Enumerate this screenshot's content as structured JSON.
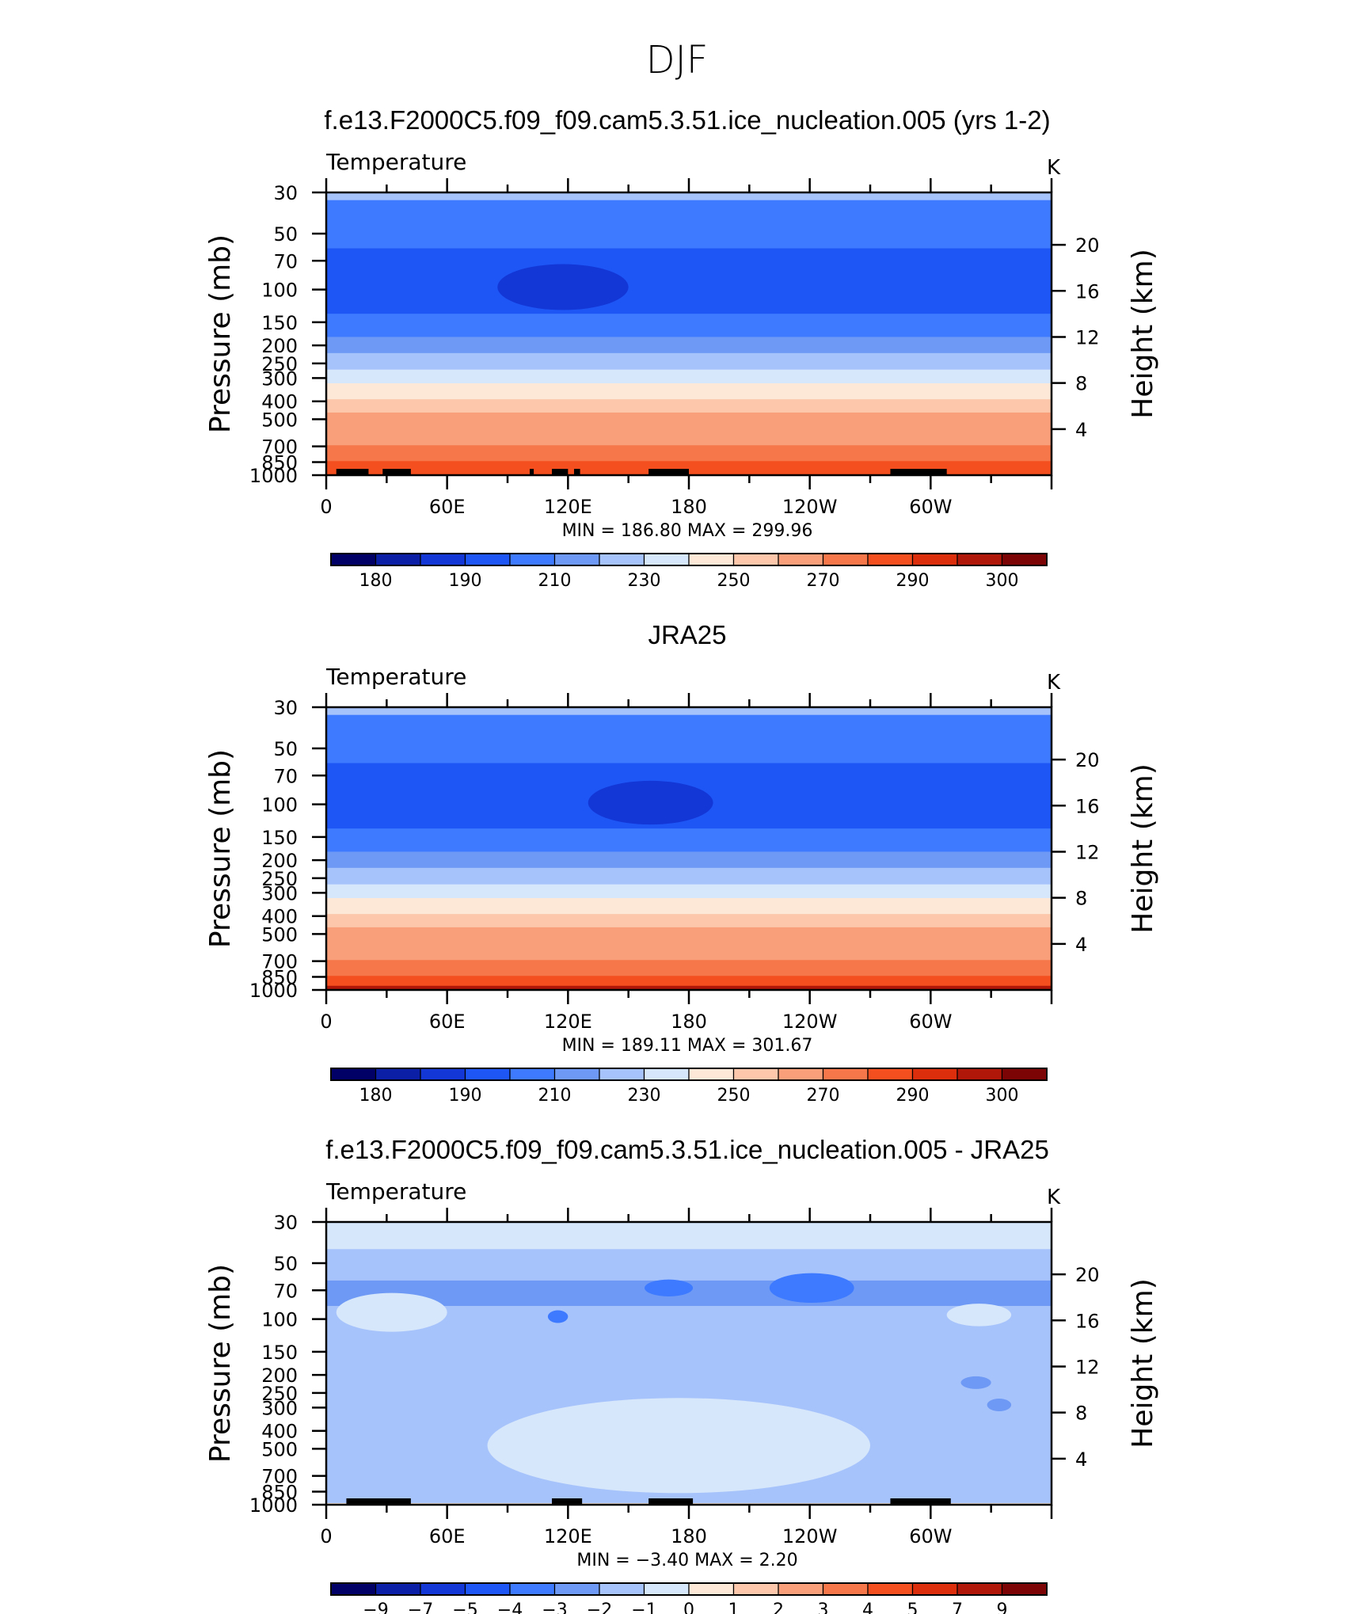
{
  "page_title": "DJF",
  "panels": [
    {
      "title": "f.e13.F2000C5.f09_f09.cam5.3.51.ice_nucleation.005 (yrs 1-2)",
      "left_label": "Temperature",
      "units": "K",
      "min_max": "MIN  =  186.80   MAX  =  299.96"
    },
    {
      "title": "JRA25",
      "left_label": "Temperature",
      "units": "K",
      "min_max": "MIN  =  189.11   MAX  =  301.67"
    },
    {
      "title": "f.e13.F2000C5.f09_f09.cam5.3.51.ice_nucleation.005 - JRA25",
      "left_label": "Temperature",
      "units": "K",
      "min_max": "MIN  =   −3.40   MAX  =     2.20"
    }
  ],
  "chart_data": [
    {
      "type": "heatmap",
      "title": "f.e13.F2000C5.f09_f09.cam5.3.51.ice_nucleation.005 (yrs 1-2)",
      "variable": "Temperature",
      "units": "K",
      "ylabel": "Pressure (mb)",
      "ylabel_right": "Height (km)",
      "x_ticks": [
        "0",
        "60E",
        "120E",
        "180",
        "120W",
        "60W"
      ],
      "y_ticks": [
        "30",
        "50",
        "70",
        "100",
        "150",
        "200",
        "250",
        "300",
        "400",
        "500",
        "700",
        "850",
        "1000"
      ],
      "y_ticks_right": [
        "20",
        "16",
        "12",
        "8",
        "4"
      ],
      "ylim": [
        1000,
        30
      ],
      "y_scale": "log",
      "min": 186.8,
      "max": 299.96,
      "colorbar_labels": [
        "180",
        "190",
        "210",
        "230",
        "250",
        "270",
        "290",
        "300"
      ],
      "layers": [
        {
          "top": 30,
          "bottom": 33,
          "value": 220
        },
        {
          "top": 33,
          "bottom": 60,
          "value": 207
        },
        {
          "top": 60,
          "bottom": 135,
          "value": 197
        },
        {
          "top": 135,
          "bottom": 180,
          "value": 207
        },
        {
          "top": 180,
          "bottom": 220,
          "value": 215
        },
        {
          "top": 220,
          "bottom": 270,
          "value": 225
        },
        {
          "top": 270,
          "bottom": 320,
          "value": 235
        },
        {
          "top": 320,
          "bottom": 390,
          "value": 245
        },
        {
          "top": 390,
          "bottom": 460,
          "value": 252
        },
        {
          "top": 460,
          "bottom": 560,
          "value": 260
        },
        {
          "top": 560,
          "bottom": 690,
          "value": 268
        },
        {
          "top": 690,
          "bottom": 840,
          "value": 277
        },
        {
          "top": 840,
          "bottom": 1000,
          "value": 285
        }
      ],
      "features": [
        {
          "lon0": 85,
          "lon1": 150,
          "p": 97,
          "value": 187
        }
      ],
      "land": [
        {
          "lon0": 5,
          "lon1": 21
        },
        {
          "lon0": 28,
          "lon1": 42
        },
        {
          "lon0": 101,
          "lon1": 103
        },
        {
          "lon0": 112,
          "lon1": 120
        },
        {
          "lon0": 123,
          "lon1": 126
        },
        {
          "lon0": 160,
          "lon1": 180
        },
        {
          "lon0": 280,
          "lon1": 308
        }
      ]
    },
    {
      "type": "heatmap",
      "title": "JRA25",
      "variable": "Temperature",
      "units": "K",
      "ylabel": "Pressure (mb)",
      "ylabel_right": "Height (km)",
      "x_ticks": [
        "0",
        "60E",
        "120E",
        "180",
        "120W",
        "60W"
      ],
      "y_ticks": [
        "30",
        "50",
        "70",
        "100",
        "150",
        "200",
        "250",
        "300",
        "400",
        "500",
        "700",
        "850",
        "1000"
      ],
      "y_ticks_right": [
        "20",
        "16",
        "12",
        "8",
        "4"
      ],
      "ylim": [
        1000,
        30
      ],
      "y_scale": "log",
      "min": 189.11,
      "max": 301.67,
      "colorbar_labels": [
        "180",
        "190",
        "210",
        "230",
        "250",
        "270",
        "290",
        "300"
      ],
      "layers": [
        {
          "top": 30,
          "bottom": 33,
          "value": 220
        },
        {
          "top": 33,
          "bottom": 60,
          "value": 207
        },
        {
          "top": 60,
          "bottom": 135,
          "value": 197
        },
        {
          "top": 135,
          "bottom": 180,
          "value": 207
        },
        {
          "top": 180,
          "bottom": 220,
          "value": 215
        },
        {
          "top": 220,
          "bottom": 270,
          "value": 225
        },
        {
          "top": 270,
          "bottom": 320,
          "value": 235
        },
        {
          "top": 320,
          "bottom": 390,
          "value": 245
        },
        {
          "top": 390,
          "bottom": 460,
          "value": 252
        },
        {
          "top": 460,
          "bottom": 560,
          "value": 260
        },
        {
          "top": 560,
          "bottom": 690,
          "value": 268
        },
        {
          "top": 690,
          "bottom": 840,
          "value": 277
        },
        {
          "top": 840,
          "bottom": 950,
          "value": 285
        },
        {
          "top": 950,
          "bottom": 1000,
          "value": 295
        }
      ],
      "features": [
        {
          "lon0": 130,
          "lon1": 192,
          "p": 98,
          "value": 187
        }
      ],
      "land": []
    },
    {
      "type": "heatmap",
      "title": "f.e13.F2000C5.f09_f09.cam5.3.51.ice_nucleation.005 - JRA25",
      "variable": "Temperature",
      "units": "K",
      "ylabel": "Pressure (mb)",
      "ylabel_right": "Height (km)",
      "x_ticks": [
        "0",
        "60E",
        "120E",
        "180",
        "120W",
        "60W"
      ],
      "y_ticks": [
        "30",
        "50",
        "70",
        "100",
        "150",
        "200",
        "250",
        "300",
        "400",
        "500",
        "700",
        "850",
        "1000"
      ],
      "y_ticks_right": [
        "20",
        "16",
        "12",
        "8",
        "4"
      ],
      "ylim": [
        1000,
        30
      ],
      "y_scale": "log",
      "min": -3.4,
      "max": 2.2,
      "colorbar_labels": [
        "−9",
        "−7",
        "−5",
        "−4",
        "−3",
        "−2",
        "−1",
        "0",
        "1",
        "2",
        "3",
        "4",
        "5",
        "7",
        "9"
      ],
      "layers": [
        {
          "top": 30,
          "bottom": 42,
          "value": -0.5
        },
        {
          "top": 42,
          "bottom": 62,
          "value": -1.5
        },
        {
          "top": 62,
          "bottom": 85,
          "value": -2.5
        },
        {
          "top": 85,
          "bottom": 980,
          "value": -1.5
        },
        {
          "top": 980,
          "bottom": 1000,
          "value": 0.5
        }
      ],
      "features": [
        {
          "lon0": 5,
          "lon1": 60,
          "p": 92,
          "value": -0.5
        },
        {
          "lon0": 308,
          "lon1": 340,
          "p": 95,
          "value": -0.5
        },
        {
          "lon0": 80,
          "lon1": 270,
          "p": 480,
          "value": -0.5
        },
        {
          "lon0": 110,
          "lon1": 120,
          "p": 97,
          "value": -3.5
        },
        {
          "lon0": 220,
          "lon1": 262,
          "p": 68,
          "value": -3.5
        },
        {
          "lon0": 158,
          "lon1": 182,
          "p": 68,
          "value": -3.5
        },
        {
          "lon0": 315,
          "lon1": 330,
          "p": 220,
          "value": -2.5
        },
        {
          "lon0": 328,
          "lon1": 340,
          "p": 290,
          "value": -2.5
        }
      ],
      "land": [
        {
          "lon0": 10,
          "lon1": 42
        },
        {
          "lon0": 112,
          "lon1": 127
        },
        {
          "lon0": 160,
          "lon1": 182
        },
        {
          "lon0": 280,
          "lon1": 310
        }
      ]
    }
  ],
  "colorbars": {
    "temperature": [
      "#000066",
      "#0a1ea6",
      "#1337d6",
      "#1e55f5",
      "#3d7aff",
      "#6e9af5",
      "#a7c3fb",
      "#d6e7fb",
      "#fde7d6",
      "#fcc7aa",
      "#f9a07a",
      "#f6784a",
      "#f44f1f",
      "#dc2e0c",
      "#b01708",
      "#7c0404"
    ],
    "difference": [
      "#000066",
      "#0a1ea6",
      "#1337d6",
      "#1e55f5",
      "#3d7aff",
      "#6e9af5",
      "#a7c3fb",
      "#d6e7fb",
      "#fde7d6",
      "#fcc7aa",
      "#f9a07a",
      "#f6784a",
      "#f44f1f",
      "#dc2e0c",
      "#b01708",
      "#7c0404"
    ]
  }
}
